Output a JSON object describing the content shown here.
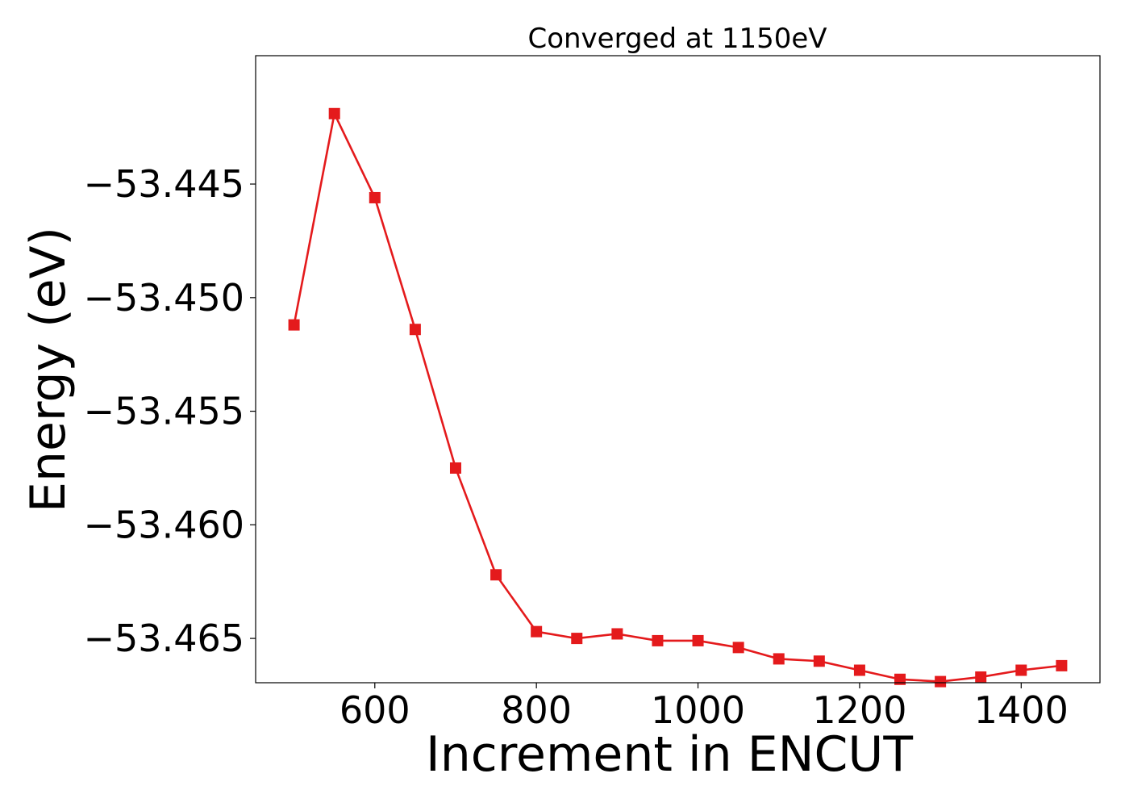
{
  "chart_data": {
    "type": "line",
    "title": "Converged at 1150eV",
    "xlabel": "Increment in ENCUT",
    "ylabel": "Energy (eV)",
    "xlim": [
      452.5,
      1497.5
    ],
    "ylim": [
      -53.46695,
      -53.43935
    ],
    "xticks": [
      600,
      800,
      1000,
      1200,
      1400
    ],
    "xtick_labels": [
      "600",
      "800",
      "1000",
      "1200",
      "1400"
    ],
    "yticks": [
      -53.465,
      -53.46,
      -53.455,
      -53.45,
      -53.445
    ],
    "ytick_labels": [
      "−53.465",
      "−53.460",
      "−53.455",
      "−53.450",
      "−53.445"
    ],
    "grid": false,
    "series": [
      {
        "color": "#e41a1c",
        "marker": "square",
        "x": [
          500,
          550,
          600,
          650,
          700,
          750,
          800,
          850,
          900,
          950,
          1000,
          1050,
          1100,
          1150,
          1200,
          1250,
          1300,
          1350,
          1400,
          1450
        ],
        "y": [
          -53.4512,
          -53.4419,
          -53.4456,
          -53.4514,
          -53.4575,
          -53.4622,
          -53.4647,
          -53.465,
          -53.4648,
          -53.4651,
          -53.4651,
          -53.4654,
          -53.4659,
          -53.466,
          -53.4664,
          -53.4668,
          -53.4669,
          -53.4667,
          -53.4664,
          -53.4662
        ]
      }
    ]
  }
}
